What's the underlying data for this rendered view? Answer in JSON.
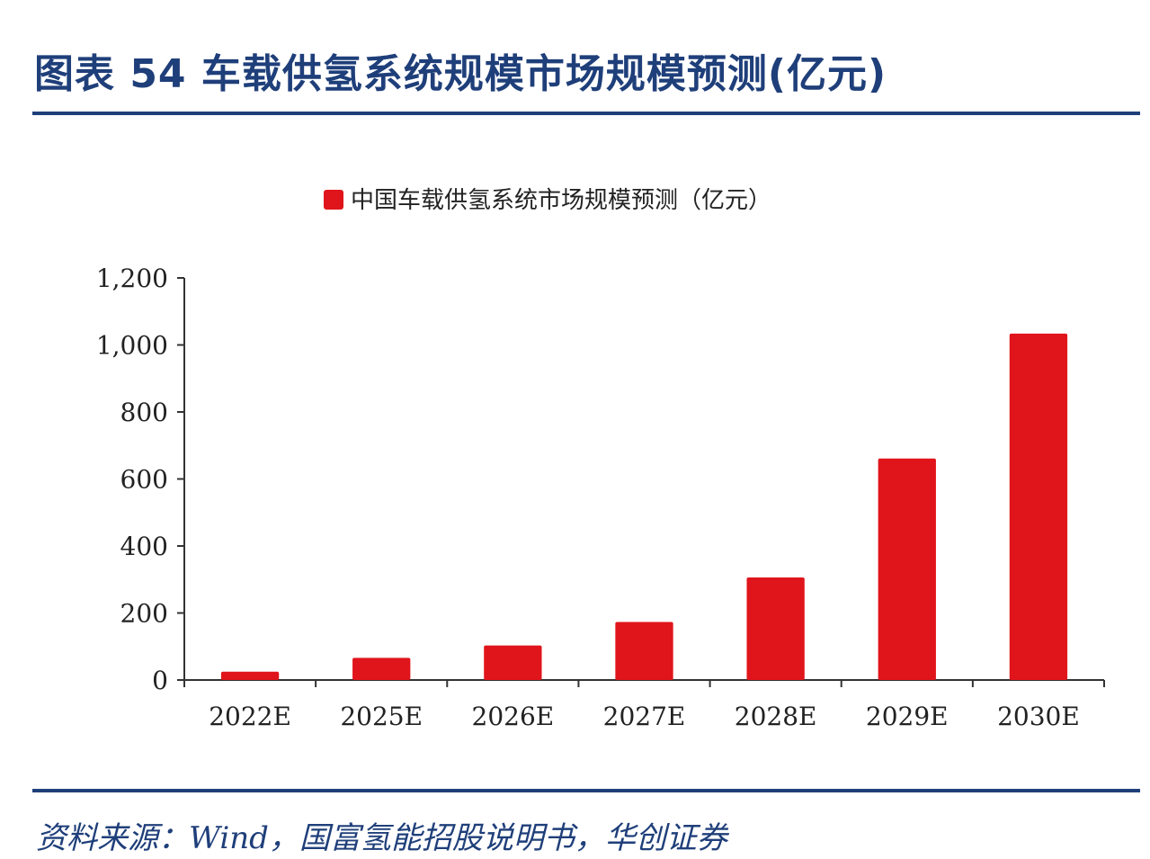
{
  "figure": {
    "title": "图表 54  车载供氢系统规模市场规模预测(亿元)",
    "source": "资料来源：Wind，国富氢能招股说明书，华创证券"
  },
  "colors": {
    "bar": "#e0151b",
    "title": "#1f3f7a",
    "axis": "#333333",
    "text": "#222222"
  },
  "chart_data": {
    "type": "bar",
    "categories": [
      "2022E",
      "2025E",
      "2026E",
      "2027E",
      "2028E",
      "2029E",
      "2030E"
    ],
    "series": [
      {
        "name": "中国车载供氢系统市场规模预测（亿元）",
        "values": [
          25,
          66,
          103,
          173,
          306,
          661,
          1034
        ]
      }
    ],
    "ylim": [
      0,
      1200
    ],
    "yticks": [
      0,
      200,
      400,
      600,
      800,
      1000,
      1200
    ],
    "ytick_labels": [
      "0",
      "200",
      "400",
      "600",
      "800",
      "1,000",
      "1,200"
    ],
    "legend_position": "top-center",
    "grid": false
  }
}
